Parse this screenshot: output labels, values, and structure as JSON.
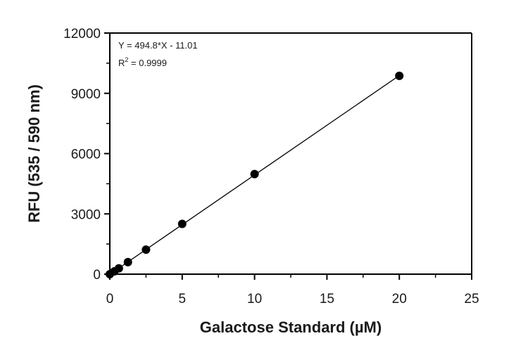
{
  "chart_data": {
    "type": "scatter",
    "xlabel": "Galactose Standard (µM)",
    "ylabel": "RFU (535 / 590 nm)",
    "xlim": [
      0,
      25
    ],
    "ylim": [
      0,
      12000
    ],
    "x_ticks": [
      0,
      5,
      10,
      15,
      20,
      25
    ],
    "y_ticks": [
      0,
      3000,
      6000,
      9000,
      12000
    ],
    "x_tick_labels": [
      "0",
      "5",
      "10",
      "15",
      "20",
      "25"
    ],
    "y_tick_labels": [
      "0",
      "3000",
      "6000",
      "9000",
      "12000"
    ],
    "grid": false,
    "series": [
      {
        "x": [
          0,
          0.3125,
          0.625,
          1.25,
          2.5,
          5,
          10,
          20
        ],
        "y": [
          0,
          140,
          290,
          600,
          1220,
          2500,
          4980,
          9870
        ],
        "marker": "circle",
        "color": "#000000"
      }
    ],
    "fit": {
      "type": "linear",
      "slope": 494.8,
      "intercept": -11.01,
      "x_range": [
        0,
        20
      ],
      "color": "#000000"
    },
    "annotation": {
      "equation": "Y = 494.8*X - 11.01",
      "r2_prefix": "R",
      "r2_sup": "2",
      "r2_value": " = 0.9999"
    }
  }
}
